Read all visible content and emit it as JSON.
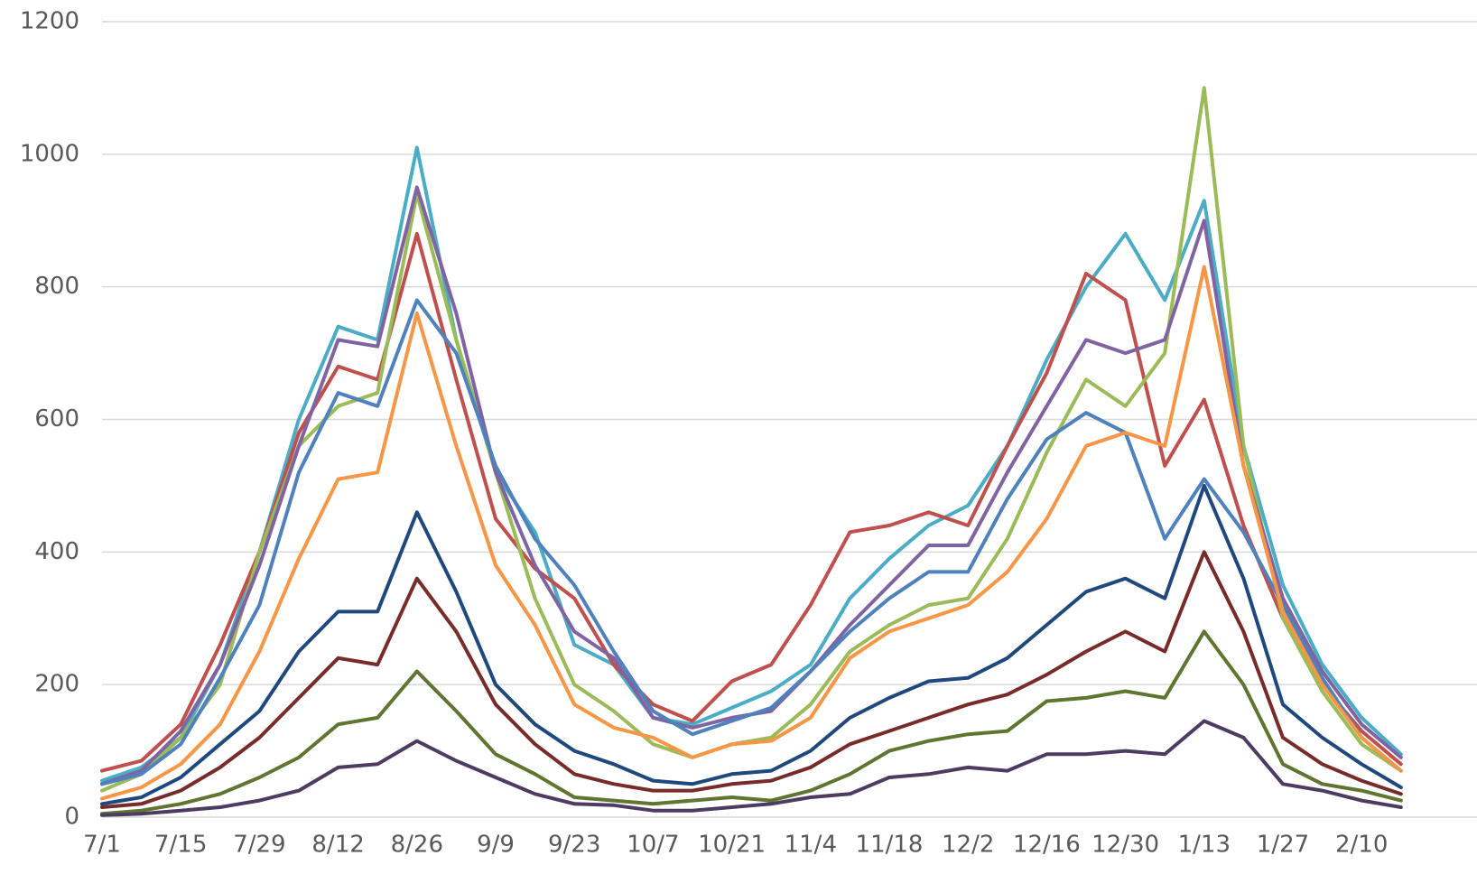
{
  "chart_data": {
    "type": "line",
    "categories": [
      "7/1",
      null,
      "7/15",
      null,
      "7/29",
      null,
      "8/12",
      null,
      "8/26",
      null,
      "9/9",
      null,
      "9/23",
      null,
      "10/7",
      null,
      "10/21",
      null,
      "11/4",
      null,
      "11/18",
      null,
      "12/2",
      null,
      "12/16",
      null,
      "12/30",
      null,
      "1/13",
      null,
      "1/27",
      null,
      "2/10",
      null
    ],
    "ylim": [
      0,
      1200
    ],
    "yticks": [
      0,
      200,
      400,
      600,
      800,
      1000,
      1200
    ],
    "grid": true,
    "series": [
      {
        "color": "#4bacc6",
        "values": [
          55,
          75,
          120,
          230,
          400,
          600,
          740,
          720,
          1010,
          720,
          520,
          430,
          260,
          230,
          150,
          140,
          165,
          190,
          230,
          330,
          390,
          440,
          470,
          560,
          690,
          800,
          880,
          780,
          930,
          560,
          350,
          230,
          150,
          95
        ]
      },
      {
        "color": "#c0504d",
        "values": [
          70,
          85,
          140,
          260,
          400,
          580,
          680,
          660,
          880,
          660,
          450,
          375,
          330,
          230,
          170,
          145,
          205,
          230,
          320,
          430,
          440,
          460,
          440,
          560,
          670,
          820,
          780,
          530,
          630,
          440,
          300,
          200,
          130,
          80
        ]
      },
      {
        "color": "#9bbb59",
        "values": [
          40,
          65,
          120,
          200,
          400,
          560,
          620,
          640,
          940,
          720,
          520,
          330,
          200,
          160,
          110,
          90,
          110,
          120,
          170,
          250,
          290,
          320,
          330,
          420,
          550,
          660,
          620,
          700,
          1100,
          560,
          300,
          190,
          110,
          70
        ]
      },
      {
        "color": "#8064a2",
        "values": [
          50,
          70,
          130,
          230,
          380,
          560,
          720,
          710,
          950,
          760,
          520,
          380,
          280,
          240,
          150,
          135,
          150,
          160,
          220,
          290,
          350,
          410,
          410,
          520,
          620,
          720,
          700,
          720,
          900,
          530,
          330,
          220,
          140,
          90
        ]
      },
      {
        "color": "#4f81bd",
        "values": [
          50,
          65,
          110,
          210,
          320,
          520,
          640,
          620,
          780,
          700,
          530,
          420,
          350,
          250,
          160,
          125,
          145,
          165,
          220,
          280,
          330,
          370,
          370,
          480,
          570,
          610,
          580,
          420,
          510,
          430,
          320,
          210,
          120,
          70
        ]
      },
      {
        "color": "#f79646",
        "values": [
          28,
          45,
          80,
          140,
          250,
          390,
          510,
          520,
          760,
          560,
          380,
          290,
          170,
          135,
          120,
          90,
          110,
          115,
          150,
          240,
          280,
          300,
          320,
          370,
          450,
          560,
          580,
          560,
          830,
          530,
          310,
          200,
          120,
          70
        ]
      },
      {
        "color": "#1f497d",
        "values": [
          20,
          30,
          60,
          110,
          160,
          250,
          310,
          310,
          460,
          340,
          200,
          140,
          100,
          80,
          55,
          50,
          65,
          70,
          100,
          150,
          180,
          205,
          210,
          240,
          290,
          340,
          360,
          330,
          500,
          360,
          170,
          120,
          80,
          45
        ]
      },
      {
        "color": "#772c2a",
        "values": [
          15,
          20,
          40,
          75,
          120,
          180,
          240,
          230,
          360,
          280,
          170,
          110,
          65,
          50,
          40,
          40,
          50,
          55,
          75,
          110,
          130,
          150,
          170,
          185,
          215,
          250,
          280,
          250,
          400,
          280,
          120,
          80,
          55,
          35
        ]
      },
      {
        "color": "#5f7530",
        "values": [
          5,
          10,
          20,
          35,
          60,
          90,
          140,
          150,
          220,
          160,
          95,
          65,
          30,
          25,
          20,
          25,
          30,
          25,
          40,
          65,
          100,
          115,
          125,
          130,
          175,
          180,
          190,
          180,
          280,
          200,
          80,
          50,
          40,
          25
        ]
      },
      {
        "color": "#4d3b62",
        "values": [
          3,
          5,
          10,
          15,
          25,
          40,
          75,
          80,
          115,
          85,
          60,
          35,
          20,
          18,
          10,
          10,
          15,
          20,
          30,
          35,
          60,
          65,
          75,
          70,
          95,
          95,
          100,
          95,
          145,
          120,
          50,
          40,
          25,
          15
        ]
      }
    ]
  }
}
